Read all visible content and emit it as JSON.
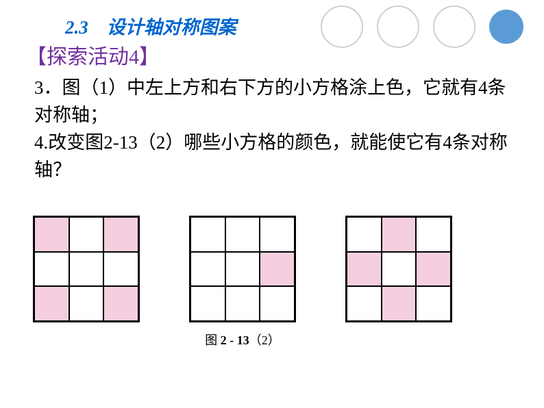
{
  "header": {
    "section_number": "2.3",
    "section_title": "设计轴对称图案",
    "subtitle": "【探索活动4】"
  },
  "body": {
    "line1": "3．图（1）中左上方和右下方的小方格涂上色，它就有4条对称轴；",
    "line2": "4.改变图2-13（2）哪些小方格的颜色，就能使它有4条对称轴？"
  },
  "grids": {
    "cell_size": 52,
    "fill_color": "#f5cfe0",
    "empty_color": "#ffffff",
    "border_color": "#000000",
    "grid1": {
      "cells": [
        [
          1,
          0,
          1
        ],
        [
          0,
          0,
          0
        ],
        [
          1,
          0,
          1
        ]
      ]
    },
    "grid2": {
      "cells": [
        [
          0,
          0,
          0
        ],
        [
          0,
          0,
          1
        ],
        [
          0,
          0,
          0
        ]
      ],
      "caption_prefix": "图 ",
      "caption_bold": "2 - 13",
      "caption_suffix": "（2）"
    },
    "grid3": {
      "cells": [
        [
          0,
          1,
          0
        ],
        [
          1,
          0,
          1
        ],
        [
          0,
          1,
          0
        ]
      ]
    }
  },
  "decor": {
    "circle_border": "#cfcfcf",
    "circle_fill": "#5b9bd5"
  }
}
